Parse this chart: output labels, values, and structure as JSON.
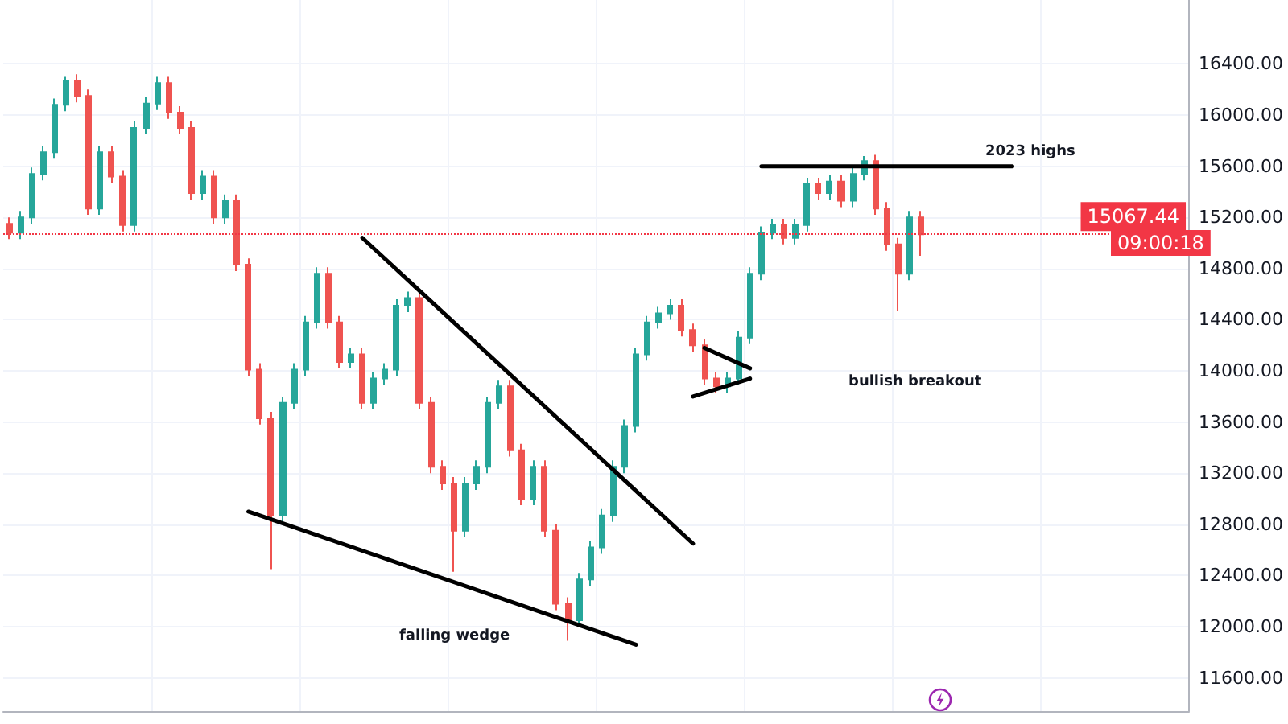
{
  "chart_data": {
    "type": "candlestick",
    "categories": [
      null,
      null,
      null,
      null,
      null,
      null,
      null,
      null,
      null,
      null,
      null,
      null,
      null,
      null,
      null,
      null,
      null,
      null,
      null,
      null,
      null,
      null,
      null,
      null,
      null,
      null,
      null,
      null,
      null,
      null,
      null,
      null,
      null,
      null,
      null,
      null,
      null,
      null,
      null,
      null,
      null,
      null,
      null,
      null,
      null,
      null,
      null,
      null,
      null,
      null,
      null,
      null,
      null,
      null,
      null,
      null,
      null,
      null,
      null,
      null,
      null,
      null,
      null,
      null,
      null,
      null,
      null,
      null,
      null,
      null,
      null,
      null,
      null,
      null,
      null,
      null,
      null,
      null,
      null,
      null,
      null,
      null,
      null,
      null,
      null,
      null,
      null,
      null,
      null,
      null,
      null,
      null,
      null,
      null,
      null,
      null,
      null,
      null,
      null,
      null,
      null,
      null,
      null,
      null
    ],
    "ohlc": [
      [
        15150,
        15200,
        15030,
        15080
      ],
      [
        15080,
        15250,
        15030,
        15200
      ],
      [
        15200,
        15590,
        15150,
        15540
      ],
      [
        15540,
        15760,
        15490,
        15710
      ],
      [
        15710,
        16130,
        15660,
        16080
      ],
      [
        16080,
        16300,
        16030,
        16270
      ],
      [
        16270,
        16320,
        16100,
        16150
      ],
      [
        16150,
        16200,
        15220,
        15270
      ],
      [
        15270,
        15760,
        15220,
        15710
      ],
      [
        15710,
        15760,
        15470,
        15520
      ],
      [
        15520,
        15570,
        15090,
        15140
      ],
      [
        15140,
        15950,
        15090,
        15900
      ],
      [
        15900,
        16140,
        15850,
        16090
      ],
      [
        16090,
        16300,
        16040,
        16250
      ],
      [
        16250,
        16300,
        15970,
        16020
      ],
      [
        16020,
        16070,
        15850,
        15900
      ],
      [
        15900,
        15950,
        15340,
        15390
      ],
      [
        15390,
        15570,
        15340,
        15520
      ],
      [
        15520,
        15570,
        15150,
        15200
      ],
      [
        15200,
        15380,
        15150,
        15330
      ],
      [
        15330,
        15380,
        14780,
        14830
      ],
      [
        14830,
        14880,
        13960,
        14010
      ],
      [
        14010,
        14060,
        13580,
        13630
      ],
      [
        13630,
        13680,
        12450,
        12870
      ],
      [
        12870,
        13800,
        12820,
        13750
      ],
      [
        13750,
        14060,
        13700,
        14010
      ],
      [
        14010,
        14430,
        13960,
        14380
      ],
      [
        14380,
        14810,
        14330,
        14760
      ],
      [
        14760,
        14810,
        14330,
        14380
      ],
      [
        14380,
        14430,
        14020,
        14070
      ],
      [
        14070,
        14180,
        14020,
        14130
      ],
      [
        14130,
        14180,
        13700,
        13750
      ],
      [
        13750,
        13990,
        13700,
        13940
      ],
      [
        13940,
        14060,
        13890,
        14010
      ],
      [
        14010,
        14560,
        13960,
        14510
      ],
      [
        14510,
        14620,
        14460,
        14570
      ],
      [
        14570,
        14620,
        13700,
        13750
      ],
      [
        13750,
        13800,
        13200,
        13250
      ],
      [
        13250,
        13300,
        13070,
        13120
      ],
      [
        13120,
        13170,
        12430,
        12750
      ],
      [
        12750,
        13170,
        12700,
        13120
      ],
      [
        13120,
        13300,
        13070,
        13250
      ],
      [
        13250,
        13800,
        13200,
        13750
      ],
      [
        13750,
        13930,
        13700,
        13880
      ],
      [
        13880,
        13930,
        13330,
        13380
      ],
      [
        13380,
        13430,
        12950,
        13000
      ],
      [
        13000,
        13300,
        12950,
        13250
      ],
      [
        13250,
        13300,
        12700,
        12750
      ],
      [
        12750,
        12800,
        12130,
        12180
      ],
      [
        12180,
        12230,
        11890,
        12050
      ],
      [
        12050,
        12420,
        12000,
        12370
      ],
      [
        12370,
        12670,
        12320,
        12620
      ],
      [
        12620,
        12920,
        12570,
        12870
      ],
      [
        12870,
        13300,
        12820,
        13250
      ],
      [
        13250,
        13620,
        13200,
        13570
      ],
      [
        13570,
        14180,
        13520,
        14130
      ],
      [
        14130,
        14430,
        14080,
        14380
      ],
      [
        14380,
        14500,
        14330,
        14450
      ],
      [
        14450,
        14560,
        14400,
        14510
      ],
      [
        14510,
        14560,
        14270,
        14320
      ],
      [
        14320,
        14370,
        14150,
        14200
      ],
      [
        14200,
        14250,
        13890,
        13940
      ],
      [
        13940,
        13990,
        13830,
        13880
      ],
      [
        13880,
        13990,
        13830,
        13940
      ],
      [
        13940,
        14310,
        13890,
        14260
      ],
      [
        14260,
        14810,
        14210,
        14760
      ],
      [
        14760,
        15130,
        14710,
        15080
      ],
      [
        15080,
        15190,
        15030,
        15140
      ],
      [
        15140,
        15190,
        14990,
        15040
      ],
      [
        15040,
        15190,
        14990,
        15140
      ],
      [
        15140,
        15510,
        15090,
        15460
      ],
      [
        15460,
        15510,
        15340,
        15390
      ],
      [
        15390,
        15530,
        15340,
        15480
      ],
      [
        15480,
        15530,
        15280,
        15330
      ],
      [
        15330,
        15590,
        15280,
        15540
      ],
      [
        15540,
        15680,
        15490,
        15640
      ],
      [
        15640,
        15690,
        15220,
        15270
      ],
      [
        15270,
        15320,
        14940,
        14990
      ],
      [
        14990,
        15040,
        14470,
        14760
      ],
      [
        14760,
        15250,
        14710,
        15200
      ],
      [
        15200,
        15250,
        14900,
        15067.44
      ],
      null,
      null,
      null,
      null,
      null,
      null,
      null,
      null,
      null,
      null,
      null,
      null,
      null,
      null,
      null,
      null,
      null,
      null,
      null,
      null,
      null,
      null,
      null
    ],
    "colors": [
      "#ef5350",
      "#26a69a",
      "#26a69a",
      "#26a69a",
      "#26a69a",
      "#26a69a",
      "#ef5350",
      "#ef5350",
      "#26a69a",
      "#ef5350",
      "#ef5350",
      "#26a69a",
      "#26a69a",
      "#26a69a",
      "#ef5350",
      "#ef5350",
      "#ef5350",
      "#26a69a",
      "#ef5350",
      "#26a69a",
      "#ef5350",
      "#ef5350",
      "#ef5350",
      "#ef5350",
      "#26a69a",
      "#26a69a",
      "#26a69a",
      "#26a69a",
      "#ef5350",
      "#ef5350",
      "#26a69a",
      "#ef5350",
      "#26a69a",
      "#26a69a",
      "#26a69a",
      "#26a69a",
      "#ef5350",
      "#ef5350",
      "#ef5350",
      "#ef5350",
      "#26a69a",
      "#26a69a",
      "#26a69a",
      "#26a69a",
      "#ef5350",
      "#ef5350",
      "#26a69a",
      "#ef5350",
      "#ef5350",
      "#ef5350",
      "#26a69a",
      "#26a69a",
      "#26a69a",
      "#26a69a",
      "#26a69a",
      "#26a69a",
      "#26a69a",
      "#26a69a",
      "#26a69a",
      "#ef5350",
      "#ef5350",
      "#ef5350",
      "#ef5350",
      "#26a69a",
      "#26a69a",
      "#26a69a",
      "#26a69a",
      "#26a69a",
      "#ef5350",
      "#26a69a",
      "#26a69a",
      "#ef5350",
      "#26a69a",
      "#ef5350",
      "#26a69a",
      "#26a69a",
      "#ef5350",
      "#ef5350",
      "#ef5350",
      "#26a69a",
      "#ef5350",
      null,
      null,
      null,
      null,
      null,
      null,
      null,
      null,
      null,
      null,
      null,
      null,
      null,
      null,
      null,
      null,
      null,
      null,
      null,
      null,
      null,
      null,
      null
    ],
    "series": [
      {
        "type": "line",
        "color": "#000000",
        "values": [
          null,
          null,
          null,
          null,
          null,
          null,
          null,
          null,
          null,
          null,
          null,
          null,
          null,
          null,
          null,
          null,
          null,
          null,
          null,
          null,
          null,
          null,
          null,
          null,
          null,
          null,
          null,
          null,
          null,
          null,
          null,
          15040,
          null,
          null,
          null,
          null,
          null,
          null,
          null,
          null,
          null,
          null,
          null,
          null,
          null,
          null,
          null,
          null,
          null,
          null,
          null,
          null,
          null,
          null,
          null,
          null,
          null,
          null,
          null,
          null,
          12650,
          null,
          null,
          null,
          null,
          null,
          null,
          null,
          null,
          null,
          null,
          null,
          null,
          null,
          null,
          null,
          null,
          null,
          null,
          null,
          null,
          null,
          null,
          null,
          null,
          null,
          null,
          null,
          null,
          null,
          null,
          null,
          null,
          null,
          null,
          null,
          null,
          null,
          null,
          null,
          null,
          null,
          null,
          null
        ]
      },
      {
        "type": "line",
        "color": "#000000",
        "values": [
          null,
          null,
          null,
          null,
          null,
          null,
          null,
          null,
          null,
          null,
          null,
          null,
          null,
          null,
          null,
          null,
          null,
          null,
          null,
          null,
          null,
          12900,
          null,
          null,
          null,
          null,
          null,
          null,
          null,
          null,
          null,
          null,
          null,
          null,
          null,
          null,
          null,
          null,
          null,
          null,
          null,
          null,
          null,
          null,
          null,
          null,
          null,
          null,
          null,
          null,
          null,
          null,
          null,
          null,
          null,
          11860,
          null,
          null,
          null,
          null,
          null,
          null,
          null,
          null,
          null,
          null,
          null,
          null,
          null,
          null,
          null,
          null,
          null,
          null,
          null,
          null,
          null,
          null,
          null,
          null,
          null,
          null,
          null,
          null,
          null,
          null,
          null,
          null,
          null,
          null,
          null,
          null,
          null,
          null,
          null,
          null,
          null,
          null,
          null,
          null,
          null,
          null,
          null,
          null
        ]
      },
      {
        "type": "line",
        "color": "#000000",
        "values": [
          null,
          null,
          null,
          null,
          null,
          null,
          null,
          null,
          null,
          null,
          null,
          null,
          null,
          null,
          null,
          null,
          null,
          null,
          null,
          null,
          null,
          null,
          null,
          null,
          null,
          null,
          null,
          null,
          null,
          null,
          null,
          null,
          null,
          null,
          null,
          null,
          null,
          null,
          null,
          null,
          null,
          null,
          null,
          null,
          null,
          null,
          null,
          null,
          null,
          null,
          null,
          null,
          null,
          null,
          null,
          null,
          null,
          null,
          null,
          null,
          null,
          14180,
          null,
          null,
          null,
          14020,
          null,
          null,
          null,
          null,
          null,
          null,
          null,
          null,
          null,
          null,
          null,
          null,
          null,
          null,
          null,
          null,
          null,
          null,
          null,
          null,
          null,
          null,
          null,
          null,
          null,
          null,
          null,
          null,
          null,
          null,
          null,
          null,
          null,
          null,
          null,
          null,
          null,
          null
        ]
      },
      {
        "type": "line",
        "color": "#000000",
        "values": [
          null,
          null,
          null,
          null,
          null,
          null,
          null,
          null,
          null,
          null,
          null,
          null,
          null,
          null,
          null,
          null,
          null,
          null,
          null,
          null,
          null,
          null,
          null,
          null,
          null,
          null,
          null,
          null,
          null,
          null,
          null,
          null,
          null,
          null,
          null,
          null,
          null,
          null,
          null,
          null,
          null,
          null,
          null,
          null,
          null,
          null,
          null,
          null,
          null,
          null,
          null,
          null,
          null,
          null,
          null,
          null,
          null,
          null,
          null,
          null,
          13800,
          null,
          null,
          null,
          null,
          13940,
          null,
          null,
          null,
          null,
          null,
          null,
          null,
          null,
          null,
          null,
          null,
          null,
          null,
          null,
          null,
          null,
          null,
          null,
          null,
          null,
          null,
          null,
          null,
          null,
          null,
          null,
          null,
          null,
          null,
          null,
          null,
          null,
          null,
          null,
          null,
          null,
          null,
          null
        ]
      },
      {
        "type": "line",
        "color": "#000000",
        "values": [
          null,
          null,
          null,
          null,
          null,
          null,
          null,
          null,
          null,
          null,
          null,
          null,
          null,
          null,
          null,
          null,
          null,
          null,
          null,
          null,
          null,
          null,
          null,
          null,
          null,
          null,
          null,
          null,
          null,
          null,
          null,
          null,
          null,
          null,
          null,
          null,
          null,
          null,
          null,
          null,
          null,
          null,
          null,
          null,
          null,
          null,
          null,
          null,
          null,
          null,
          null,
          null,
          null,
          null,
          null,
          null,
          null,
          null,
          null,
          null,
          null,
          null,
          null,
          null,
          null,
          null,
          15600,
          null,
          null,
          null,
          null,
          null,
          null,
          null,
          null,
          null,
          null,
          null,
          null,
          null,
          null,
          null,
          null,
          null,
          null,
          null,
          null,
          null,
          15600,
          null,
          null,
          null,
          null,
          null,
          null,
          null,
          null,
          null,
          null,
          null,
          null,
          null,
          null,
          null
        ]
      }
    ],
    "ylim": [
      11340,
      16900
    ],
    "yticks": [
      {
        "value": 11600,
        "label": "11600.00"
      },
      {
        "value": 12000,
        "label": "12000.00"
      },
      {
        "value": 12400,
        "label": "12400.00"
      },
      {
        "value": 12800,
        "label": "12800.00"
      },
      {
        "value": 13200,
        "label": "13200.00"
      },
      {
        "value": 13600,
        "label": "13600.00"
      },
      {
        "value": 14000,
        "label": "14000.00"
      },
      {
        "value": 14400,
        "label": "14400.00"
      },
      {
        "value": 14800,
        "label": "14800.00"
      },
      {
        "value": 15200,
        "label": "15200.00"
      },
      {
        "value": 15600,
        "label": "15600.00"
      },
      {
        "value": 16000,
        "label": "16000.00"
      },
      {
        "value": 16400,
        "label": "16400.00"
      }
    ],
    "ref_lines": [
      {
        "axis": "y",
        "value": 15067.44,
        "label": "15067.44",
        "color": "#f23645",
        "line_style": "dotted"
      }
    ],
    "annotations": [
      "falling wedge",
      "bullish breakout",
      "2023 highs",
      "09:00:18"
    ],
    "grid": true,
    "tick_labels": "y"
  }
}
